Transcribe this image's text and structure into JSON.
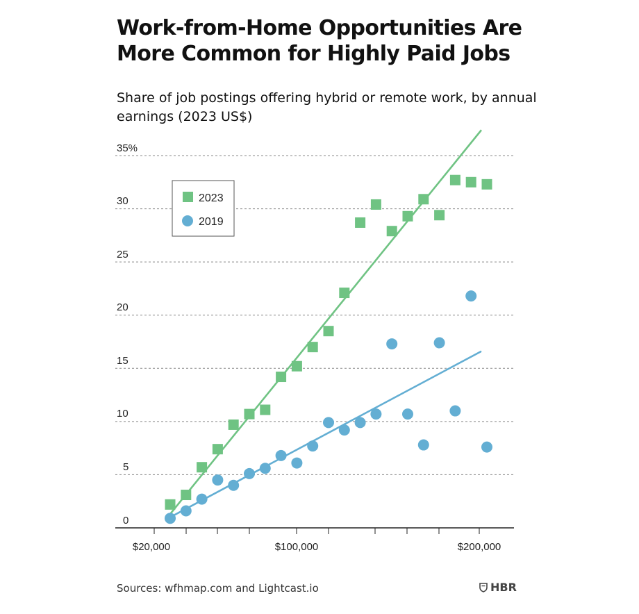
{
  "title": "Work-from-Home Opportunities Are More Common for Highly Paid Jobs",
  "subtitle": "Share of job postings offering hybrid or remote work, by annual earnings (2023 US$)",
  "source": "Sources: wfhmap.com and Lightcast.io",
  "logo_text": "HBR",
  "chart_data": {
    "type": "scatter",
    "x_tick_labels": [
      "$20,000",
      "$100,000",
      "$200,000"
    ],
    "y_tick_labels": [
      "0",
      "5",
      "10",
      "15",
      "20",
      "25",
      "30",
      "35%"
    ],
    "ylim": [
      0,
      35
    ],
    "grid": true,
    "legend_placement": "top-left",
    "series": [
      {
        "name": "2023",
        "marker": "square",
        "color": "#6fc383",
        "y": [
          2.2,
          3.1,
          5.7,
          7.4,
          9.7,
          10.7,
          11.1,
          14.2,
          15.2,
          17.0,
          18.5,
          22.1,
          28.7,
          30.4,
          27.9,
          29.3,
          30.9,
          29.4,
          32.7,
          32.5,
          32.3
        ],
        "trend": [
          1.3,
          37.4
        ]
      },
      {
        "name": "2019",
        "marker": "circle",
        "color": "#63aed3",
        "y": [
          0.9,
          1.6,
          2.7,
          4.5,
          4.0,
          5.1,
          5.6,
          6.8,
          6.1,
          7.7,
          9.9,
          9.2,
          9.9,
          10.7,
          17.3,
          10.7,
          7.8,
          17.4,
          11.0,
          21.8,
          7.6
        ],
        "trend": [
          1.0,
          16.6
        ]
      }
    ]
  }
}
